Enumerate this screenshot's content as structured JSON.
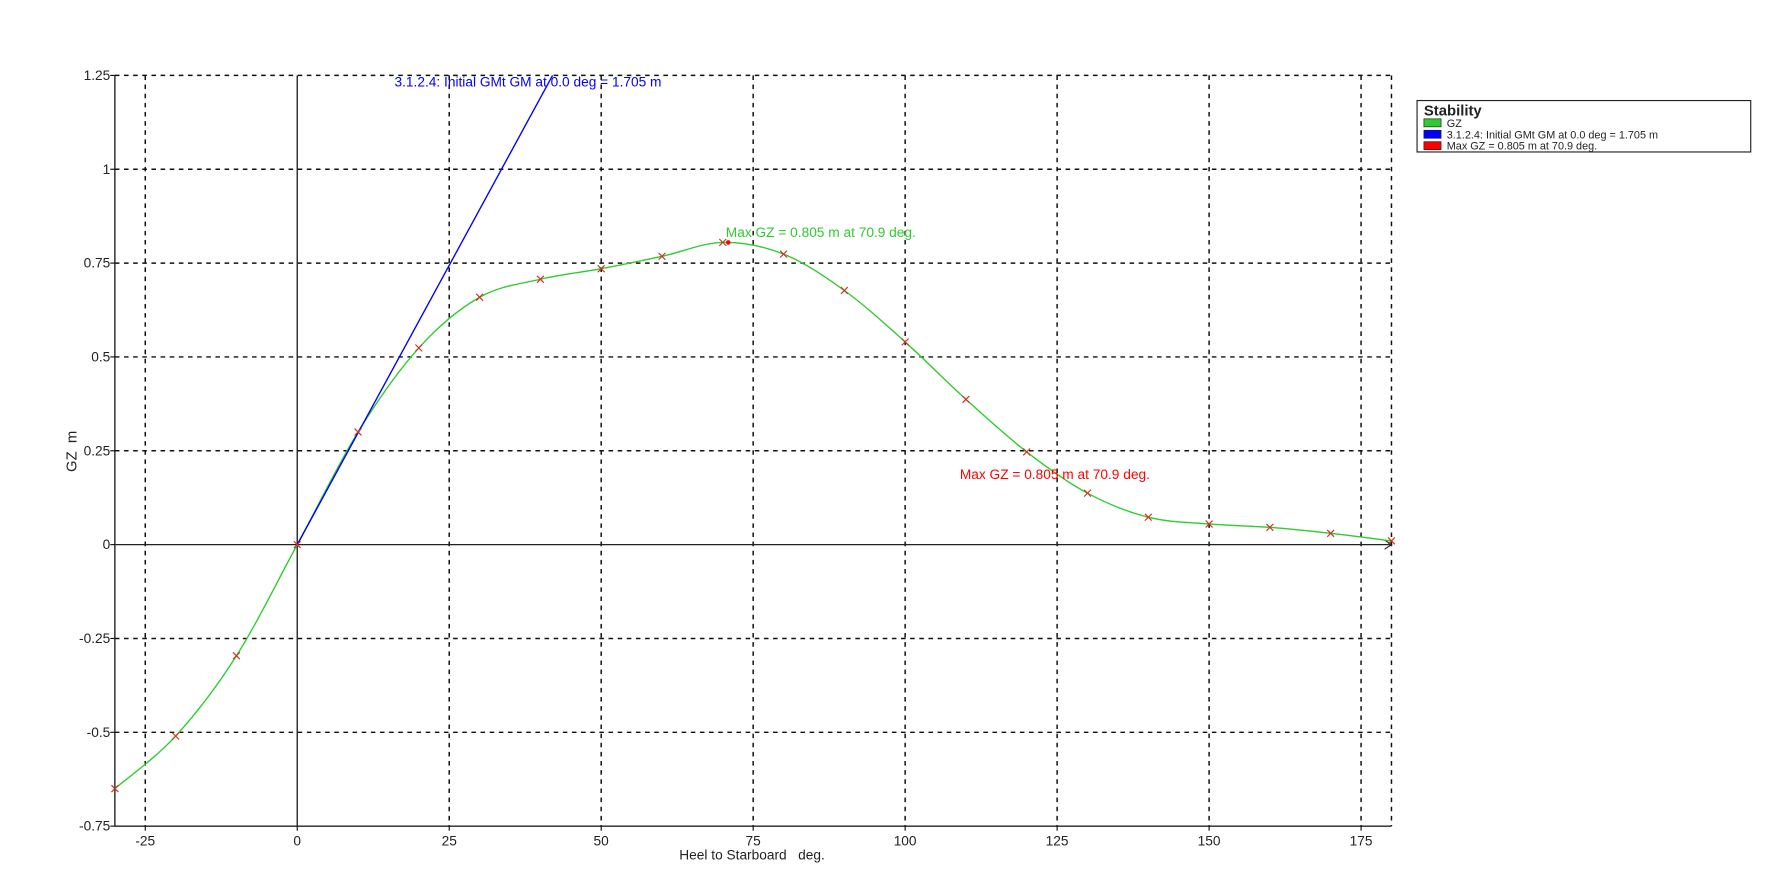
{
  "chart_data": {
    "type": "line",
    "title": "Stability",
    "xlabel": "Heel to Starboard   deg.",
    "ylabel": "GZ  m",
    "xlim": [
      -30,
      180
    ],
    "ylim": [
      -0.75,
      1.25
    ],
    "grid": true,
    "legend_position": "top-right",
    "x_ticks": [
      -25,
      0,
      25,
      50,
      75,
      100,
      125,
      150,
      175
    ],
    "x_tick_labels": [
      "-25",
      "0",
      "25",
      "50",
      "75",
      "100",
      "125",
      "150",
      "175"
    ],
    "y_ticks": [
      -0.75,
      -0.5,
      -0.25,
      0,
      0.25,
      0.5,
      0.75,
      1,
      1.25
    ],
    "y_tick_labels": [
      "-0.75",
      "-0.5",
      "-0.25",
      "0",
      "0.25",
      "0.5",
      "0.75",
      "1",
      "1.25"
    ],
    "series": [
      {
        "name": "GZ",
        "color": "#2ecc2e",
        "x": [
          -30,
          -20,
          -10,
          0,
          10,
          20,
          30,
          40,
          50,
          60,
          70,
          80,
          90,
          100,
          110,
          120,
          130,
          140,
          150,
          160,
          170,
          180
        ],
        "y": [
          -0.65,
          -0.51,
          -0.296,
          0,
          0.3,
          0.524,
          0.659,
          0.707,
          0.735,
          0.768,
          0.805,
          0.774,
          0.677,
          0.54,
          0.387,
          0.247,
          0.137,
          0.073,
          0.055,
          0.046,
          0.03,
          0.01
        ]
      },
      {
        "name": "3.1.2.4: Initial GMt GM at 0.0 deg = 1.705 m",
        "color": "#0000ff",
        "x": [
          0,
          42
        ],
        "y": [
          0,
          1.25
        ]
      },
      {
        "name": "Max GZ = 0.805 m at 70.9 deg.",
        "color": "#ff0000",
        "x": [
          70.9
        ],
        "y": [
          0.805
        ]
      }
    ],
    "annotations": [
      {
        "text": "3.1.2.4: Initial GMt GM at 0.0 deg = 1.705 m",
        "color": "#0000ff",
        "x": 16,
        "y": 1.22
      },
      {
        "text": "Max GZ = 0.805 m at 70.9 deg.",
        "color": "#2ecc2e",
        "x": 70.5,
        "y": 0.82
      },
      {
        "text": "Max GZ = 0.805 m at 70.9 deg.",
        "color": "#ff0000",
        "x": 109,
        "y": 0.175
      }
    ]
  }
}
